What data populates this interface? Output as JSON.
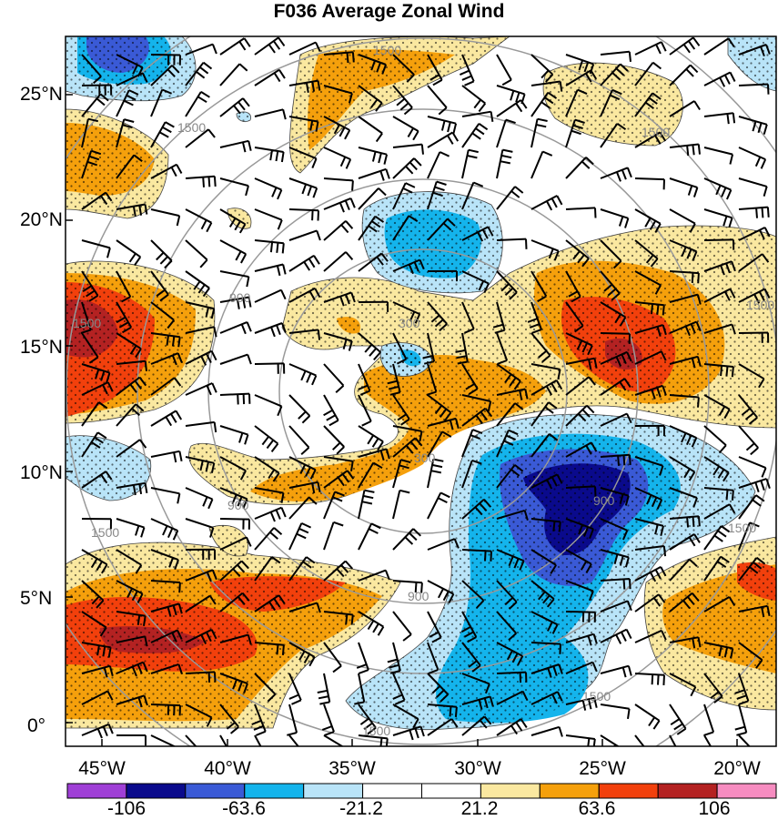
{
  "title": "F036 Average Zonal Wind",
  "lat_ticks": [
    "25°N",
    "20°N",
    "15°N",
    "10°N",
    "5°N",
    "0°"
  ],
  "lon_ticks": [
    "45°W",
    "40°W",
    "35°W",
    "30°W",
    "25°W",
    "20°W"
  ],
  "range_ring_labels": [
    "300",
    "900",
    "1500"
  ],
  "colorbar": {
    "tick_labels": [
      "-106",
      "-63.6",
      "-21.2",
      "21.2",
      "63.6",
      "106"
    ],
    "colors": [
      "#9f3fd6",
      "#0a0a8c",
      "#3a5ad6",
      "#14b4ec",
      "#b9e4f8",
      "#ffffff",
      "#ffffff",
      "#fae8a0",
      "#f5a00c",
      "#f2400c",
      "#b42222",
      "#f68cc0"
    ]
  },
  "field_colors": {
    "light_yellow": "#fae8a0",
    "orange": "#f5a00c",
    "red_orange": "#f2400c",
    "dark_red": "#b42222",
    "light_blue": "#b9e4f8",
    "mid_blue": "#14b4ec",
    "blue": "#3a5ad6",
    "navy": "#0a0a8c"
  }
}
